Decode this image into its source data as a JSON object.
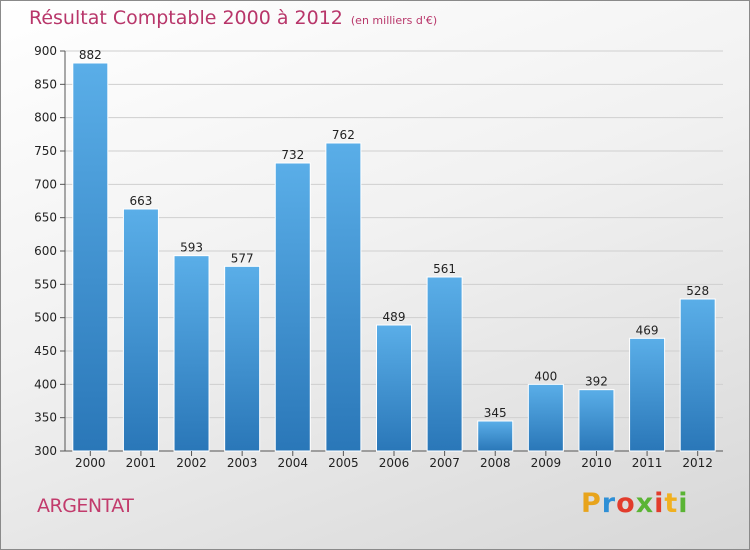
{
  "header": {
    "title": "Résultat Comptable 2000 à 2012",
    "subtitle": "(en milliers d'€)"
  },
  "footer": {
    "commune": "ARGENTAT",
    "logo_text": "Proxiti",
    "logo_colors": [
      "#e8a41c",
      "#2e8fd6",
      "#e23c2c",
      "#5ab434",
      "#e23c2c",
      "#f0b020",
      "#5ab434"
    ]
  },
  "colors": {
    "title": "#b8366a",
    "commune": "#c23b6c",
    "bar_top": "#5aaee8",
    "bar_bottom": "#2a77b8"
  },
  "chart_data": {
    "type": "bar",
    "title": "Résultat Comptable 2000 à 2012",
    "subtitle": "(en milliers d'€)",
    "categories": [
      "2000",
      "2001",
      "2002",
      "2003",
      "2004",
      "2005",
      "2006",
      "2007",
      "2008",
      "2009",
      "2010",
      "2011",
      "2012"
    ],
    "values": [
      882,
      663,
      593,
      577,
      732,
      762,
      489,
      561,
      345,
      400,
      392,
      469,
      528
    ],
    "ylim": [
      300,
      900
    ],
    "yticks": [
      300,
      350,
      400,
      450,
      500,
      550,
      600,
      650,
      700,
      750,
      800,
      850,
      900
    ],
    "grid": true,
    "xlabel": "",
    "ylabel": ""
  }
}
